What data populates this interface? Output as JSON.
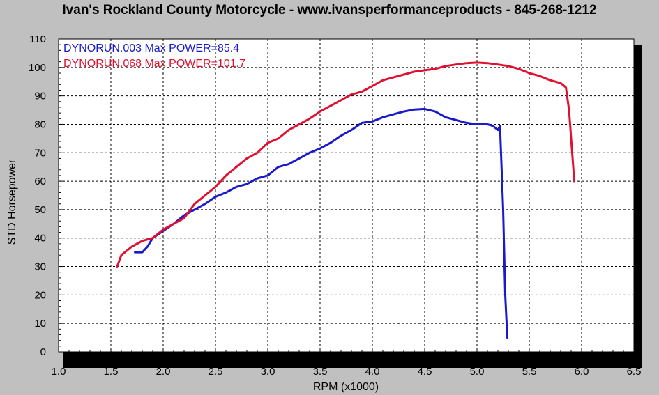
{
  "chart_data": {
    "type": "line",
    "title": "Ivan's Rockland County Motorcycle - www.ivansperformanceproducts - 845-268-1212",
    "xlabel": "RPM (x1000)",
    "ylabel": "STD Horsepower",
    "xlim": [
      1.0,
      6.5
    ],
    "ylim": [
      0,
      110
    ],
    "x_ticks": [
      "1.0",
      "1.5",
      "2.0",
      "2.5",
      "3.0",
      "3.5",
      "4.0",
      "4.5",
      "5.0",
      "5.5",
      "6.0",
      "6.5"
    ],
    "y_ticks": [
      "0",
      "10",
      "20",
      "30",
      "40",
      "50",
      "60",
      "70",
      "80",
      "90",
      "100",
      "110"
    ],
    "grid": true,
    "legend_position": "top-left",
    "series": [
      {
        "name": "DYNORUN.003  Max POWER=85.4",
        "color": "#1a1acc",
        "x": [
          1.73,
          1.8,
          1.85,
          1.9,
          2.0,
          2.1,
          2.2,
          2.3,
          2.4,
          2.5,
          2.6,
          2.7,
          2.8,
          2.9,
          3.0,
          3.1,
          3.2,
          3.3,
          3.4,
          3.5,
          3.6,
          3.7,
          3.8,
          3.9,
          4.0,
          4.1,
          4.2,
          4.3,
          4.4,
          4.5,
          4.6,
          4.7,
          4.8,
          4.9,
          5.0,
          5.1,
          5.15,
          5.2,
          5.22,
          5.25,
          5.27,
          5.29
        ],
        "y": [
          35,
          35,
          37,
          40,
          42.5,
          45,
          48,
          50,
          52,
          54.5,
          56,
          58,
          59,
          61,
          62,
          65,
          66,
          68,
          70,
          71.5,
          73.5,
          76,
          78,
          80.5,
          81,
          82.5,
          83.5,
          84.5,
          85.2,
          85.4,
          84.5,
          82.5,
          81.5,
          80.5,
          80,
          80,
          79.5,
          78,
          79.5,
          50,
          20,
          5
        ]
      },
      {
        "name": "DYNORUN.068  Max POWER=101.7",
        "color": "#e01030",
        "x": [
          1.56,
          1.6,
          1.7,
          1.8,
          1.9,
          2.0,
          2.1,
          2.2,
          2.3,
          2.4,
          2.5,
          2.6,
          2.7,
          2.8,
          2.9,
          3.0,
          3.1,
          3.2,
          3.3,
          3.4,
          3.5,
          3.6,
          3.7,
          3.8,
          3.9,
          4.0,
          4.1,
          4.2,
          4.3,
          4.4,
          4.5,
          4.6,
          4.7,
          4.8,
          4.9,
          5.0,
          5.1,
          5.2,
          5.3,
          5.4,
          5.5,
          5.6,
          5.7,
          5.75,
          5.8,
          5.85,
          5.88,
          5.9,
          5.92,
          5.93
        ],
        "y": [
          30,
          34,
          37,
          39,
          40,
          43,
          45,
          47,
          52,
          55,
          58,
          62,
          65,
          68,
          70,
          73.5,
          75,
          78,
          80,
          82,
          84.5,
          86.5,
          88.5,
          90.5,
          91.5,
          93.5,
          95.5,
          96.5,
          97.5,
          98.5,
          99,
          99.5,
          100.5,
          101,
          101.5,
          101.7,
          101.5,
          101,
          100.5,
          99.5,
          98,
          97,
          95.5,
          95,
          94.5,
          93,
          85,
          75,
          65,
          60
        ]
      }
    ]
  }
}
